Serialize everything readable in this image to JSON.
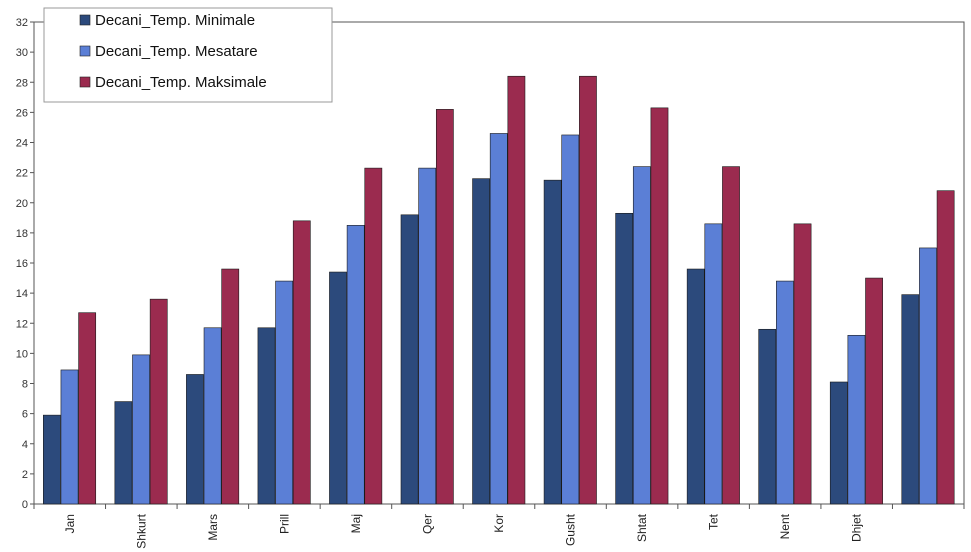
{
  "chart_data": {
    "type": "bar",
    "categories": [
      "Jan",
      "Shkurt",
      "Mars",
      "Prill",
      "Maj",
      "Qer",
      "Kor",
      "Gusht",
      "Shtat",
      "Tet",
      "Nent",
      "Dhjet",
      ""
    ],
    "series": [
      {
        "name": "Decani_Temp. Minimale",
        "color": "#2c4a7c",
        "values": [
          5.9,
          6.8,
          8.6,
          11.7,
          15.4,
          19.2,
          21.6,
          21.5,
          19.3,
          15.6,
          11.6,
          8.1,
          13.9
        ]
      },
      {
        "name": "Decani_Temp. Mesatare",
        "color": "#5b7fd6",
        "values": [
          8.9,
          9.9,
          11.7,
          14.8,
          18.5,
          22.3,
          24.6,
          24.5,
          22.4,
          18.6,
          14.8,
          11.2,
          17.0
        ]
      },
      {
        "name": "Decani_Temp. Maksimale",
        "color": "#9b2b4f",
        "values": [
          12.7,
          13.6,
          15.6,
          18.8,
          22.3,
          26.2,
          28.4,
          28.4,
          26.3,
          22.4,
          18.6,
          15.0,
          20.8
        ]
      }
    ],
    "yticks": [
      0,
      2,
      4,
      6,
      8,
      10,
      12,
      14,
      16,
      18,
      20,
      22,
      24,
      26,
      28,
      30,
      32
    ],
    "ylim": [
      0,
      32
    ],
    "legend_position": "top-left",
    "grid": false
  }
}
